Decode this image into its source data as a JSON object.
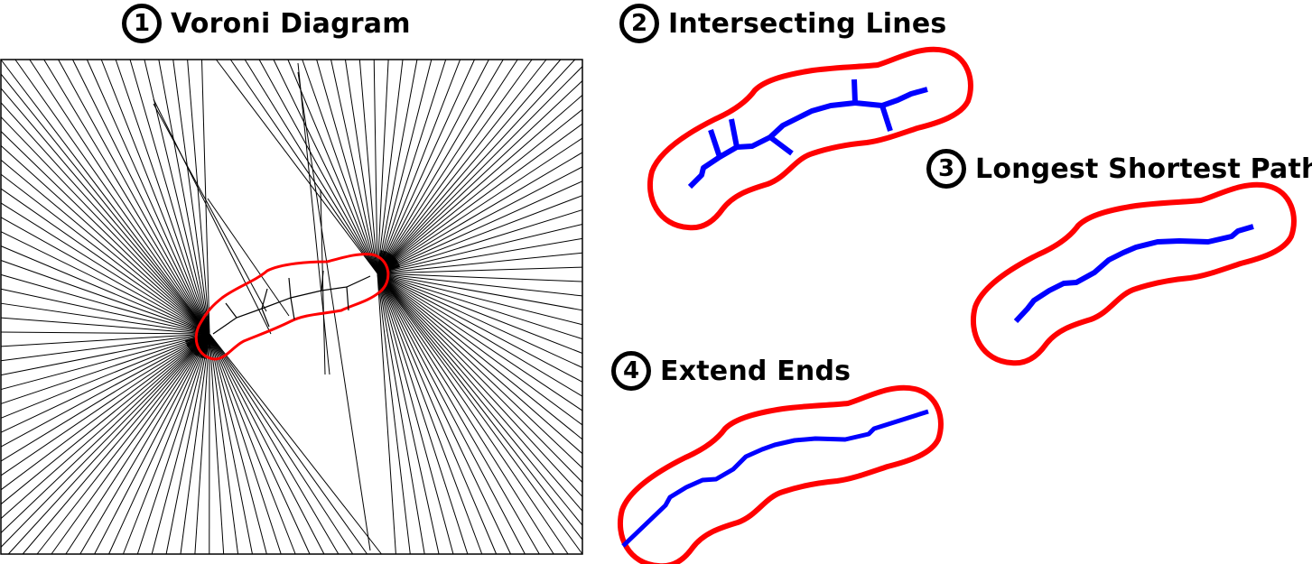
{
  "steps": [
    {
      "number": "1",
      "title": "Voroni Diagram"
    },
    {
      "number": "2",
      "title": "Intersecting Lines"
    },
    {
      "number": "3",
      "title": "Longest Shortest Path"
    },
    {
      "number": "4",
      "title": "Extend Ends"
    }
  ],
  "colors": {
    "outline": "#ff0000",
    "skeleton": "#0000ff",
    "voronoi_lines": "#000000"
  },
  "icons": [
    "number-badge-icon"
  ]
}
